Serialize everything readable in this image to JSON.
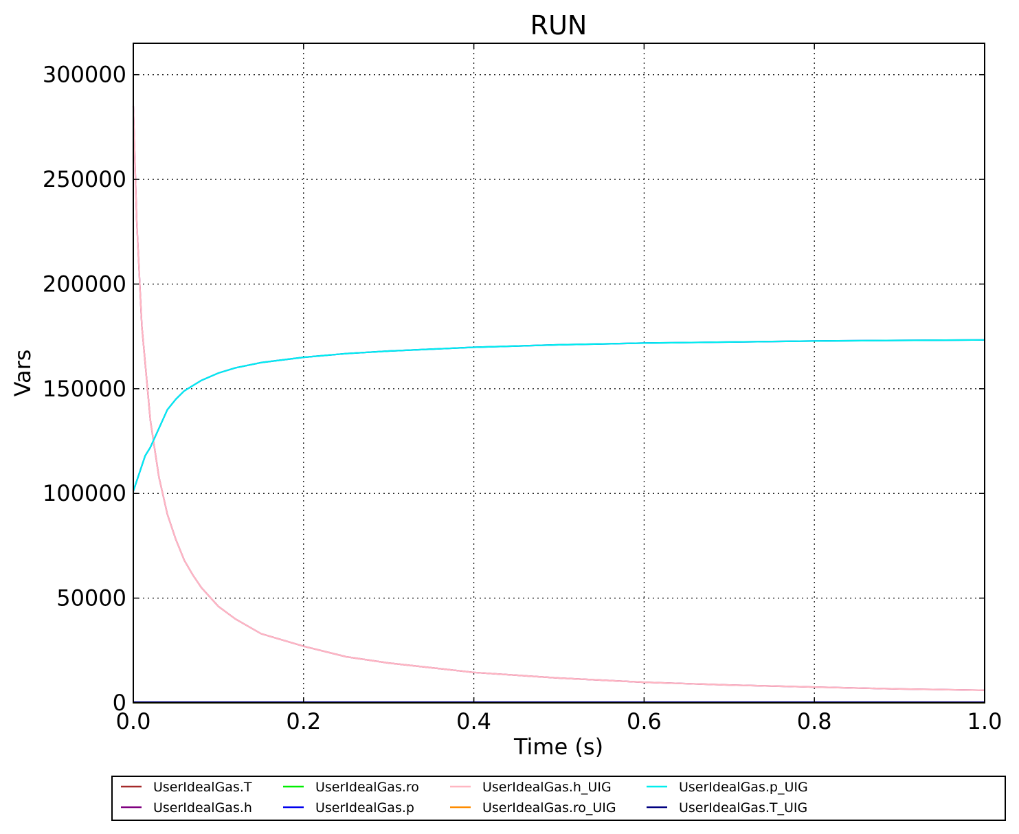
{
  "chart_data": {
    "type": "line",
    "title": "RUN",
    "xlabel": "Time (s)",
    "ylabel": "Vars",
    "xlim": [
      0.0,
      1.0
    ],
    "ylim": [
      0,
      315000
    ],
    "xticks": [
      0.0,
      0.2,
      0.4,
      0.6,
      0.8,
      1.0
    ],
    "xtick_labels": [
      "0.0",
      "0.2",
      "0.4",
      "0.6",
      "0.8",
      "1.0"
    ],
    "yticks": [
      0,
      50000,
      100000,
      150000,
      200000,
      250000,
      300000
    ],
    "ytick_labels": [
      "0",
      "50000",
      "100000",
      "150000",
      "200000",
      "250000",
      "300000"
    ],
    "grid": true,
    "legend_placement": "below plot",
    "legend": [
      {
        "name": "UserIdealGas.T",
        "color": "#a52a2a"
      },
      {
        "name": "UserIdealGas.h",
        "color": "#800080"
      },
      {
        "name": "UserIdealGas.ro",
        "color": "#00ee00"
      },
      {
        "name": "UserIdealGas.p",
        "color": "#0000ee"
      },
      {
        "name": "UserIdealGas.h_UIG",
        "color": "#ffb6c1"
      },
      {
        "name": "UserIdealGas.ro_UIG",
        "color": "#ff8c00"
      },
      {
        "name": "UserIdealGas.p_UIG",
        "color": "#00eeee"
      },
      {
        "name": "UserIdealGas.T_UIG",
        "color": "#000080"
      }
    ],
    "series": [
      {
        "name": "UserIdealGas.T",
        "color": "#a52a2a",
        "x": [
          0.0,
          0.2,
          0.4,
          0.6,
          0.8,
          1.0
        ],
        "y": [
          300,
          290,
          285,
          282,
          280,
          278
        ]
      },
      {
        "name": "UserIdealGas.h",
        "color": "#800080",
        "x": [
          0.0,
          0.004,
          0.01,
          0.02,
          0.03,
          0.04,
          0.05,
          0.06,
          0.07,
          0.08,
          0.1,
          0.12,
          0.15,
          0.2,
          0.25,
          0.3,
          0.4,
          0.5,
          0.6,
          0.7,
          0.8,
          0.9,
          1.0
        ],
        "y": [
          285000,
          230000,
          180000,
          135000,
          108000,
          90000,
          78000,
          68000,
          61000,
          55000,
          46000,
          40000,
          33000,
          27000,
          22000,
          19000,
          14500,
          11800,
          9800,
          8500,
          7500,
          6600,
          6000
        ]
      },
      {
        "name": "UserIdealGas.ro",
        "color": "#00ee00",
        "x": [
          0.0,
          0.2,
          0.4,
          0.6,
          0.8,
          1.0
        ],
        "y": [
          1.2,
          1.9,
          2.0,
          2.05,
          2.08,
          2.1
        ]
      },
      {
        "name": "UserIdealGas.p",
        "color": "#0000ee",
        "x": [
          0.0,
          0.004,
          0.014,
          0.02,
          0.03,
          0.04,
          0.05,
          0.06,
          0.08,
          0.1,
          0.12,
          0.15,
          0.2,
          0.25,
          0.3,
          0.4,
          0.5,
          0.6,
          0.7,
          0.8,
          0.9,
          1.0
        ],
        "y": [
          101000,
          106000,
          118000,
          122000,
          131000,
          140000,
          145000,
          149000,
          154000,
          157500,
          160000,
          162500,
          165000,
          166800,
          168000,
          169800,
          171000,
          171800,
          172300,
          172800,
          173100,
          173300
        ]
      },
      {
        "name": "UserIdealGas.h_UIG",
        "color": "#ffb6c1",
        "x": [
          0.0,
          0.004,
          0.01,
          0.02,
          0.03,
          0.04,
          0.05,
          0.06,
          0.07,
          0.08,
          0.1,
          0.12,
          0.15,
          0.2,
          0.25,
          0.3,
          0.4,
          0.5,
          0.6,
          0.7,
          0.8,
          0.9,
          1.0
        ],
        "y": [
          285000,
          230000,
          180000,
          135000,
          108000,
          90000,
          78000,
          68000,
          61000,
          55000,
          46000,
          40000,
          33000,
          27000,
          22000,
          19000,
          14500,
          11800,
          9800,
          8500,
          7500,
          6600,
          6000
        ]
      },
      {
        "name": "UserIdealGas.ro_UIG",
        "color": "#ff8c00",
        "x": [
          0.0,
          0.2,
          0.4,
          0.6,
          0.8,
          1.0
        ],
        "y": [
          1.2,
          1.9,
          2.0,
          2.05,
          2.08,
          2.1
        ]
      },
      {
        "name": "UserIdealGas.p_UIG",
        "color": "#00eeee",
        "x": [
          0.0,
          0.004,
          0.014,
          0.02,
          0.03,
          0.04,
          0.05,
          0.06,
          0.08,
          0.1,
          0.12,
          0.15,
          0.2,
          0.25,
          0.3,
          0.4,
          0.5,
          0.6,
          0.7,
          0.8,
          0.9,
          1.0
        ],
        "y": [
          101000,
          106000,
          118000,
          122000,
          131000,
          140000,
          145000,
          149000,
          154000,
          157500,
          160000,
          162500,
          165000,
          166800,
          168000,
          169800,
          171000,
          171800,
          172300,
          172800,
          173100,
          173300
        ]
      },
      {
        "name": "UserIdealGas.T_UIG",
        "color": "#000080",
        "x": [
          0.0,
          0.2,
          0.4,
          0.6,
          0.8,
          1.0
        ],
        "y": [
          300,
          290,
          285,
          282,
          280,
          278
        ]
      }
    ]
  }
}
